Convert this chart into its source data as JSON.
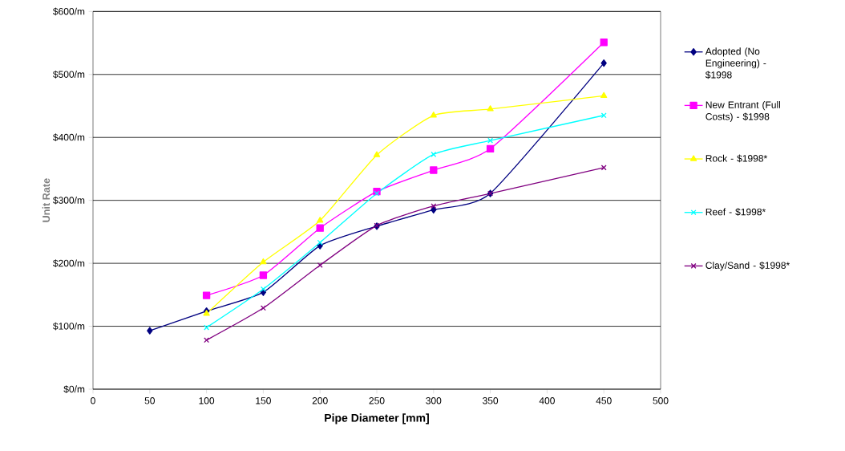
{
  "chart_data": {
    "type": "line",
    "xlabel": "Pipe Diameter [mm]",
    "ylabel": "Unit Rate",
    "xlim": [
      0,
      500
    ],
    "xticks": [
      0,
      50,
      100,
      150,
      200,
      250,
      300,
      350,
      400,
      450,
      500
    ],
    "ylim": [
      0,
      600
    ],
    "yticks": [
      {
        "value": 0,
        "label": "$0/m"
      },
      {
        "value": 100,
        "label": "$100/m"
      },
      {
        "value": 200,
        "label": "$200/m"
      },
      {
        "value": 300,
        "label": "$300/m"
      },
      {
        "value": 400,
        "label": "$400/m"
      },
      {
        "value": 500,
        "label": "$500/m"
      },
      {
        "value": 600,
        "label": "$600/m"
      }
    ],
    "grid": "y",
    "legend": "right",
    "series": [
      {
        "name": "Adopted (No Engineering) - $1998",
        "color": "#000080",
        "marker": "diamond",
        "x": [
          50,
          100,
          150,
          200,
          250,
          300,
          350,
          450
        ],
        "values": [
          93,
          124,
          154,
          228,
          259,
          285,
          311,
          518
        ]
      },
      {
        "name": "New Entrant (Full Costs) - $1998",
        "color": "#ff00ff",
        "marker": "square",
        "x": [
          100,
          150,
          200,
          250,
          300,
          350,
          450
        ],
        "values": [
          149,
          181,
          256,
          314,
          348,
          382,
          551
        ]
      },
      {
        "name": "Rock - $1998*",
        "color": "#ffff00",
        "marker": "triangle",
        "x": [
          100,
          150,
          200,
          250,
          300,
          350,
          450
        ],
        "values": [
          120,
          202,
          268,
          372,
          435,
          445,
          466
        ]
      },
      {
        "name": "Reef - $1998*",
        "color": "#00ffff",
        "marker": "cross",
        "x": [
          100,
          150,
          200,
          250,
          300,
          350,
          450
        ],
        "values": [
          98,
          159,
          233,
          311,
          373,
          395,
          435
        ]
      },
      {
        "name": "Clay/Sand - $1998*",
        "color": "#800080",
        "marker": "cross",
        "x": [
          100,
          150,
          200,
          250,
          300,
          350,
          450
        ],
        "values": [
          78,
          129,
          197,
          260,
          291,
          311,
          352
        ]
      }
    ]
  }
}
